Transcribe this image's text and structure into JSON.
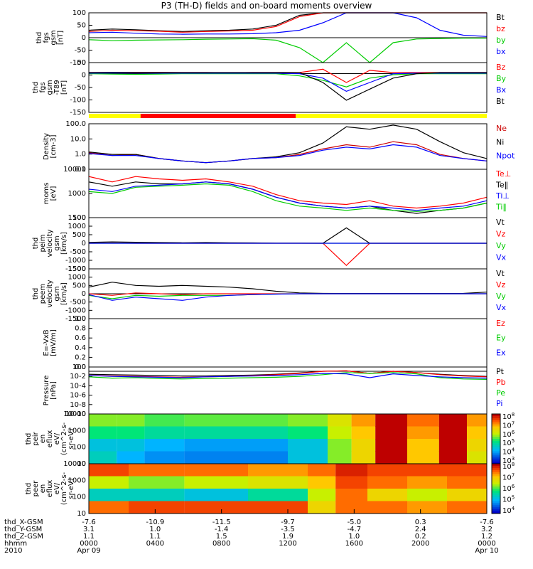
{
  "title": "P3 (TH-D) fields and on-board moments overview",
  "chart_data": [
    {
      "type": "line",
      "ylabel": [
        "thd",
        "fgs",
        "gsm",
        "[nT]"
      ],
      "yticks": [
        "100",
        "50",
        "0",
        "-50",
        "-100"
      ],
      "ylim": [
        -100,
        100
      ],
      "series": [
        {
          "name": "Bt",
          "color": "#000000",
          "values": [
            30,
            35,
            32,
            28,
            25,
            28,
            30,
            35,
            50,
            90,
            100,
            100,
            100,
            100,
            100,
            100,
            100,
            100
          ]
        },
        {
          "name": "bz",
          "color": "#ff0000",
          "values": [
            25,
            30,
            28,
            26,
            22,
            25,
            27,
            30,
            45,
            85,
            100,
            100,
            100,
            100,
            100,
            100,
            100,
            100
          ]
        },
        {
          "name": "by",
          "color": "#00cc00",
          "values": [
            -8,
            -12,
            -10,
            -9,
            -8,
            -6,
            -5,
            -4,
            -10,
            -40,
            -100,
            -20,
            -100,
            -20,
            -5,
            -3,
            -2,
            -2
          ]
        },
        {
          "name": "bx",
          "color": "#0000ff",
          "values": [
            20,
            22,
            18,
            15,
            14,
            15,
            15,
            16,
            20,
            30,
            60,
            100,
            100,
            100,
            80,
            30,
            10,
            5
          ]
        }
      ]
    },
    {
      "type": "line",
      "ylabel": [
        "thd",
        "fgs",
        "gsm",
        "-T89",
        "[nT]"
      ],
      "yticks": [
        "50",
        "0",
        "-50",
        "-100",
        "-150"
      ],
      "ylim": [
        -175,
        50
      ],
      "series": [
        {
          "name": "Bz",
          "color": "#ff0000",
          "values": [
            5,
            5,
            6,
            6,
            5,
            5,
            4,
            5,
            5,
            5,
            20,
            -40,
            15,
            5,
            5,
            5,
            5,
            5
          ]
        },
        {
          "name": "By",
          "color": "#00cc00",
          "values": [
            0,
            -2,
            -3,
            -2,
            0,
            0,
            0,
            0,
            0,
            -10,
            -30,
            -60,
            -20,
            -5,
            0,
            0,
            0,
            0
          ]
        },
        {
          "name": "Bx",
          "color": "#0000ff",
          "values": [
            2,
            3,
            3,
            2,
            2,
            2,
            2,
            2,
            2,
            0,
            -20,
            -80,
            -40,
            0,
            2,
            2,
            2,
            2
          ]
        },
        {
          "name": "Bt",
          "color": "#000000",
          "values": [
            5,
            6,
            5,
            5,
            5,
            5,
            5,
            5,
            5,
            5,
            -40,
            -120,
            -70,
            -20,
            0,
            5,
            5,
            5
          ]
        }
      ]
    },
    {
      "type": "line",
      "ylabel": [
        "Density",
        "[cm-3]"
      ],
      "yticks": [
        "100.0",
        "10.0",
        "1.0",
        "0.1"
      ],
      "ylim": [
        0.05,
        100
      ],
      "scale": "log",
      "series": [
        {
          "name": "Ne",
          "color": "#cc0000",
          "values": [
            0.8,
            0.5,
            0.6,
            0.3,
            0.2,
            0.15,
            0.2,
            0.3,
            0.35,
            0.6,
            1.5,
            3,
            2,
            5,
            3,
            0.6,
            0.3,
            0.2
          ]
        },
        {
          "name": "Ni",
          "color": "#000000",
          "values": [
            0.9,
            0.6,
            0.6,
            0.3,
            0.2,
            0.15,
            0.2,
            0.3,
            0.4,
            0.8,
            4,
            60,
            40,
            80,
            40,
            5,
            0.8,
            0.3
          ]
        },
        {
          "name": "Npot",
          "color": "#0000ff",
          "values": [
            0.7,
            0.5,
            0.5,
            0.3,
            0.2,
            0.15,
            0.2,
            0.3,
            0.35,
            0.5,
            1.2,
            2,
            1.5,
            3,
            2,
            0.5,
            0.3,
            0.2
          ]
        }
      ]
    },
    {
      "type": "line",
      "ylabel": [
        "moms",
        "[eV]"
      ],
      "yticks": [
        "10000",
        "1000",
        "100"
      ],
      "ylim": [
        100,
        10000
      ],
      "scale": "log",
      "series": [
        {
          "name": "Te⊥",
          "color": "#ff0000",
          "values": [
            5000,
            3000,
            5000,
            4000,
            3500,
            4000,
            3000,
            2000,
            900,
            500,
            400,
            350,
            500,
            300,
            250,
            300,
            400,
            700
          ]
        },
        {
          "name": "Te‖",
          "color": "#000000",
          "values": [
            3000,
            2000,
            3000,
            2500,
            2500,
            3000,
            2500,
            1500,
            700,
            400,
            300,
            250,
            300,
            200,
            150,
            200,
            250,
            400
          ]
        },
        {
          "name": "Ti⊥",
          "color": "#0000ff",
          "values": [
            1500,
            1200,
            2000,
            2200,
            2500,
            3000,
            2500,
            1500,
            700,
            400,
            300,
            250,
            300,
            250,
            200,
            250,
            300,
            500
          ]
        },
        {
          "name": "Ti‖",
          "color": "#00cc00",
          "values": [
            1200,
            1000,
            1800,
            2000,
            2200,
            2500,
            2200,
            1200,
            500,
            300,
            250,
            200,
            250,
            200,
            180,
            200,
            250,
            400
          ]
        }
      ]
    },
    {
      "type": "line",
      "ylabel": [
        "thd",
        "peim",
        "velocity",
        "gsm",
        "[km/s]"
      ],
      "yticks": [
        "1500",
        "1000",
        "500",
        "0",
        "-500",
        "-1000",
        "-1500"
      ],
      "ylim": [
        -1500,
        1500
      ],
      "series": [
        {
          "name": "Vt",
          "color": "#000000",
          "values": [
            50,
            80,
            60,
            40,
            30,
            40,
            30,
            20,
            10,
            5,
            0,
            900,
            0,
            0,
            0,
            0,
            0,
            0
          ]
        },
        {
          "name": "Vz",
          "color": "#ff0000",
          "values": [
            0,
            10,
            0,
            0,
            0,
            0,
            0,
            0,
            0,
            0,
            0,
            -1300,
            0,
            0,
            0,
            0,
            0,
            0
          ]
        },
        {
          "name": "Vy",
          "color": "#00cc00",
          "values": [
            0,
            0,
            0,
            0,
            0,
            0,
            0,
            0,
            0,
            0,
            0,
            0,
            0,
            0,
            0,
            0,
            0,
            0
          ]
        },
        {
          "name": "Vx",
          "color": "#0000ff",
          "values": [
            0,
            0,
            0,
            0,
            0,
            0,
            0,
            0,
            0,
            0,
            0,
            0,
            0,
            0,
            0,
            0,
            0,
            0
          ]
        }
      ]
    },
    {
      "type": "line",
      "ylabel": [
        "thd",
        "peem",
        "velocity",
        "gsm",
        "[km/s]"
      ],
      "yticks": [
        "1500",
        "1000",
        "500",
        "0",
        "-500",
        "-1000",
        "-1500"
      ],
      "ylim": [
        -1500,
        1500
      ],
      "series": [
        {
          "name": "Vt",
          "color": "#000000",
          "values": [
            400,
            700,
            500,
            450,
            500,
            450,
            400,
            300,
            150,
            50,
            20,
            15,
            15,
            15,
            15,
            15,
            20,
            100
          ]
        },
        {
          "name": "Vz",
          "color": "#ff0000",
          "values": [
            0,
            -100,
            50,
            0,
            -50,
            0,
            0,
            0,
            0,
            0,
            0,
            0,
            0,
            0,
            0,
            0,
            0,
            0
          ]
        },
        {
          "name": "Vy",
          "color": "#00cc00",
          "values": [
            -100,
            -300,
            -100,
            -150,
            -100,
            -100,
            -100,
            -50,
            -20,
            0,
            0,
            0,
            0,
            0,
            0,
            0,
            0,
            0
          ]
        },
        {
          "name": "Vx",
          "color": "#0000ff",
          "values": [
            -50,
            -400,
            -200,
            -300,
            -400,
            -200,
            -100,
            -50,
            -20,
            0,
            0,
            0,
            0,
            0,
            0,
            0,
            0,
            0
          ]
        }
      ]
    },
    {
      "type": "line",
      "ylabel": [
        "E=-VxB",
        "[mV/m]"
      ],
      "yticks": [
        "1.0",
        "0.8",
        "0.6",
        "0.4",
        "0.2",
        "0.0"
      ],
      "ylim": [
        0,
        1
      ],
      "series": [
        {
          "name": "Ez",
          "color": "#ff0000",
          "values": []
        },
        {
          "name": "Ey",
          "color": "#00cc00",
          "values": []
        },
        {
          "name": "Ex",
          "color": "#0000ff",
          "values": []
        }
      ]
    },
    {
      "type": "line",
      "ylabel": [
        "Pressure",
        "[nPa]"
      ],
      "yticks": [
        "10^0",
        "10^-2",
        "10^-4",
        "10^-6",
        "10^-8",
        "10^-10"
      ],
      "ylim": [
        -10,
        1
      ],
      "scale": "log",
      "series": [
        {
          "name": "Pt",
          "color": "#000000",
          "values": [
            -0.7,
            -0.8,
            -0.9,
            -1,
            -1.1,
            -1.1,
            -1,
            -0.9,
            -0.7,
            -0.4,
            0,
            0.1,
            -0.5,
            0,
            -0.3,
            -0.7,
            -1,
            -1.2
          ]
        },
        {
          "name": "Pb",
          "color": "#ff0000",
          "values": [
            -1,
            -1.1,
            -1.2,
            -1.3,
            -1.4,
            -1.3,
            -1.2,
            -1,
            -0.8,
            -0.5,
            0,
            0.1,
            -0.5,
            0,
            -0.3,
            -0.8,
            -1.1,
            -1.3
          ]
        },
        {
          "name": "Pe",
          "color": "#00cc00",
          "values": [
            -1.3,
            -1.6,
            -1.5,
            -1.7,
            -1.8,
            -1.7,
            -1.6,
            -1.5,
            -1.4,
            -1.2,
            -0.8,
            -0.3,
            -0.5,
            -0.3,
            -0.6,
            -1.5,
            -1.8,
            -1.9
          ]
        },
        {
          "name": "Pi",
          "color": "#0000ff",
          "values": [
            -1,
            -1.2,
            -1.3,
            -1.4,
            -1.5,
            -1.3,
            -1.2,
            -1.1,
            -1,
            -0.8,
            -0.5,
            -0.6,
            -1.5,
            -0.6,
            -1,
            -1.3,
            -1.5,
            -1.6
          ]
        }
      ]
    },
    {
      "type": "heatmap",
      "ylabel": [
        "thd",
        "peir",
        "en",
        "eflux",
        "eV/",
        "(cm^2-s-",
        "sr-eV)"
      ],
      "yticks": [
        "10000",
        "1000",
        "100",
        "10"
      ],
      "colorbar": {
        "ticks": [
          "10^8",
          "10^7",
          "10^6",
          "10^5",
          "10^4",
          "10^3"
        ]
      },
      "columns": [
        {
          "start_frac": 0,
          "levels": [
            0.55,
            0.45,
            0.3,
            0.35
          ]
        },
        {
          "start_frac": 0.07,
          "levels": [
            0.55,
            0.45,
            0.3,
            0.25
          ]
        },
        {
          "start_frac": 0.14,
          "levels": [
            0.5,
            0.4,
            0.25,
            0.2
          ]
        },
        {
          "start_frac": 0.24,
          "levels": [
            0.52,
            0.4,
            0.22,
            0.18
          ]
        },
        {
          "start_frac": 0.5,
          "levels": [
            0.55,
            0.45,
            0.3,
            0.3
          ]
        },
        {
          "start_frac": 0.6,
          "levels": [
            0.65,
            0.6,
            0.55,
            0.55
          ]
        },
        {
          "start_frac": 0.66,
          "levels": [
            0.8,
            0.75,
            0.7,
            0.7
          ]
        },
        {
          "start_frac": 0.72,
          "levels": [
            1.0,
            1.0,
            1.0,
            1.0
          ]
        },
        {
          "start_frac": 0.8,
          "levels": [
            0.85,
            0.8,
            0.75,
            0.75
          ]
        },
        {
          "start_frac": 0.88,
          "levels": [
            1.0,
            1.0,
            1.0,
            1.0
          ]
        },
        {
          "start_frac": 0.95,
          "levels": [
            0.8,
            0.75,
            0.7,
            0.65
          ]
        }
      ]
    },
    {
      "type": "heatmap",
      "ylabel": [
        "thd",
        "peer",
        "en",
        "eflux",
        "eV/",
        "(cm^2-s-",
        "sr-eV)"
      ],
      "yticks": [
        "10000",
        "1000",
        "100",
        "10"
      ],
      "colorbar": {
        "ticks": [
          "10^8",
          "10^7",
          "10^6",
          "10^5",
          "10^4"
        ]
      },
      "columns": [
        {
          "start_frac": 0,
          "levels": [
            0.9,
            0.6,
            0.35,
            0.85
          ]
        },
        {
          "start_frac": 0.1,
          "levels": [
            0.85,
            0.55,
            0.35,
            0.9
          ]
        },
        {
          "start_frac": 0.24,
          "levels": [
            0.85,
            0.6,
            0.3,
            0.9
          ]
        },
        {
          "start_frac": 0.4,
          "levels": [
            0.8,
            0.65,
            0.4,
            0.9
          ]
        },
        {
          "start_frac": 0.55,
          "levels": [
            0.85,
            0.75,
            0.6,
            0.7
          ]
        },
        {
          "start_frac": 0.62,
          "levels": [
            0.95,
            0.9,
            0.85,
            0.85
          ]
        },
        {
          "start_frac": 0.7,
          "levels": [
            0.9,
            0.85,
            0.7,
            0.85
          ]
        },
        {
          "start_frac": 0.8,
          "levels": [
            0.9,
            0.8,
            0.6,
            0.8
          ]
        },
        {
          "start_frac": 0.9,
          "levels": [
            0.9,
            0.85,
            0.7,
            0.85
          ]
        }
      ]
    }
  ],
  "mode_bar": {
    "segments": [
      {
        "start_frac": 0,
        "end_frac": 0.13,
        "color": "#ffff00"
      },
      {
        "start_frac": 0.13,
        "end_frac": 0.52,
        "color": "#ff0000"
      },
      {
        "start_frac": 0.52,
        "end_frac": 1,
        "color": "#ffff00"
      }
    ]
  },
  "x_axis": {
    "rows": [
      {
        "label": "thd_X-GSM",
        "values": [
          "-7.6",
          "-10.9",
          "-11.5",
          "-9.7",
          "-5.0",
          "0.3",
          "-7.6"
        ]
      },
      {
        "label": "thd_Y-GSM",
        "values": [
          "3.1",
          "1.0",
          "-1.4",
          "-3.5",
          "-4.7",
          "2.4",
          "3.2"
        ]
      },
      {
        "label": "thd_Z-GSM",
        "values": [
          "1.1",
          "1.1",
          "1.5",
          "1.9",
          "1.0",
          "0.2",
          "1.2"
        ]
      },
      {
        "label": "hhmm",
        "values": [
          "0000",
          "0400",
          "0800",
          "1200",
          "1600",
          "2000",
          "0000"
        ]
      },
      {
        "label": "2010",
        "values": [
          "Apr 09",
          "",
          "",
          "",
          "",
          "",
          "Apr 10"
        ]
      }
    ]
  }
}
